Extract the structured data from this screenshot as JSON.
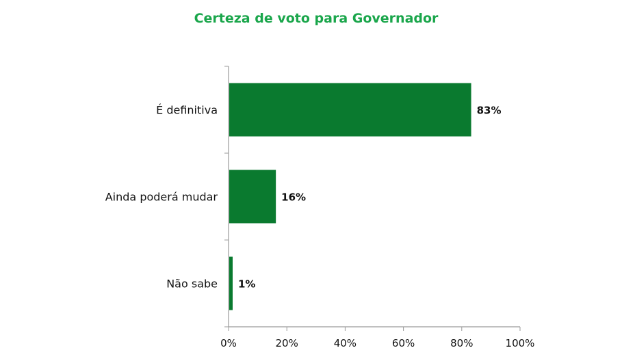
{
  "chart_data": {
    "type": "bar",
    "orientation": "horizontal",
    "title": "Certeza de voto para Governador",
    "categories": [
      "É definitiva",
      "Ainda poderá mudar",
      "Não sabe"
    ],
    "values": [
      83,
      16,
      1
    ],
    "value_labels": [
      "83%",
      "16%",
      "1%"
    ],
    "xlim": [
      0,
      100
    ],
    "x_ticks": [
      0,
      20,
      40,
      60,
      80,
      100
    ],
    "x_tick_labels": [
      "0%",
      "20%",
      "40%",
      "60%",
      "80%",
      "100%"
    ],
    "xlabel": "",
    "ylabel": "",
    "grid": false,
    "legend": "none",
    "colors": {
      "bar": "#0a7a2f",
      "title": "#1aa64b",
      "axis": "#9a9a9a"
    }
  }
}
